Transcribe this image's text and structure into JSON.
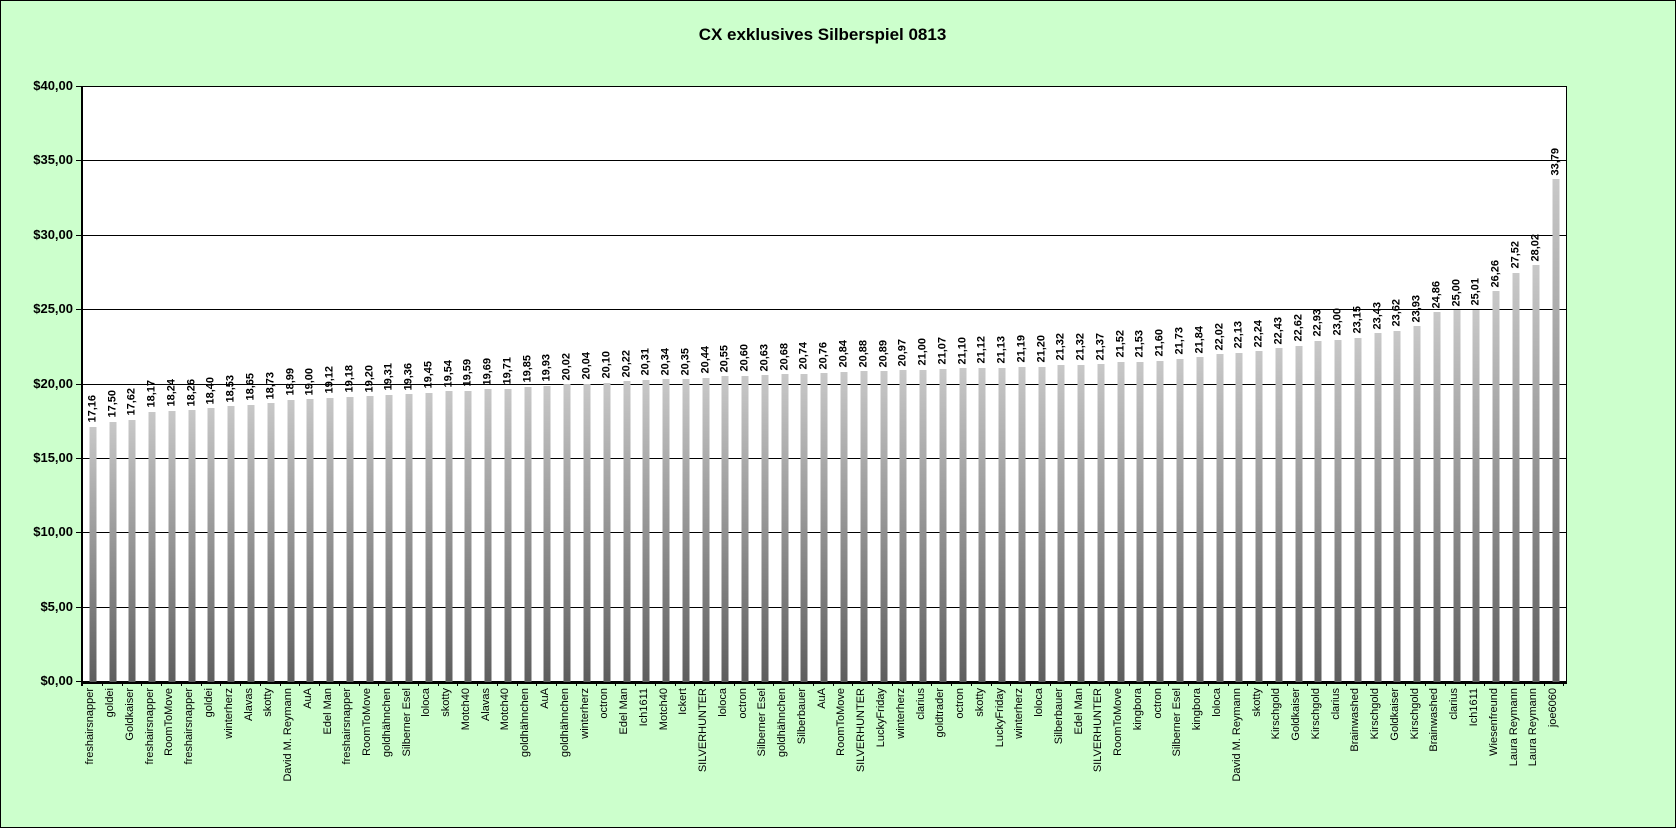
{
  "title": "CX exklusives Silberspiel 0813",
  "chart_data": {
    "type": "bar",
    "title": "CX exklusives Silberspiel 0813",
    "xlabel": "",
    "ylabel": "",
    "ylim": [
      0,
      40
    ],
    "ytick_step": 5,
    "ytick_labels": [
      "$0,00",
      "$5,00",
      "$10,00",
      "$15,00",
      "$20,00",
      "$25,00",
      "$30,00",
      "$35,00",
      "$40,00"
    ],
    "grid": true,
    "legend": false,
    "bar_orientation": "vertical",
    "categories": [
      "freshairsnapper",
      "goldei",
      "Goldkaiser",
      "freshairsnapper",
      "RoomToMove",
      "freshairsnapper",
      "goldei",
      "winterherz",
      "Alavas",
      "skotty",
      "David M. Reymann",
      "AuA",
      "Edel Man",
      "freshairsnapper",
      "RoomToMove",
      "goldhähnchen",
      "Silberner Esel",
      "loloca",
      "skotty",
      "Motch40",
      "Alavas",
      "Motch40",
      "goldhähnchen",
      "AuA",
      "goldhähnchen",
      "winterherz",
      "octron",
      "Edel Man",
      "Ich1611",
      "Motch40",
      "Ickert",
      "SILVERHUNTER",
      "loloca",
      "octron",
      "Silberner Esel",
      "goldhähnchen",
      "Silberbauer",
      "AuA",
      "RoomToMove",
      "SILVERHUNTER",
      "LuckyFriday",
      "winterherz",
      "clarius",
      "goldtrader",
      "octron",
      "skotty",
      "LuckyFriday",
      "winterherz",
      "loloca",
      "Silberbauer",
      "Edel Man",
      "SILVERHUNTER",
      "RoomToMove",
      "kingbora",
      "octron",
      "Silberner Esel",
      "kingbora",
      "loloca",
      "David M. Reymann",
      "skotty",
      "Kirschgold",
      "Goldkaiser",
      "Kirschgold",
      "clarius",
      "Brainwashed",
      "Kirschgold",
      "Goldkaiser",
      "Kirschgold",
      "Brainwashed",
      "clarius",
      "Ich1611",
      "Wiesenfreund",
      "Laura Reymann",
      "Laura Reymann",
      "joe6060"
    ],
    "values": [
      17.16,
      17.5,
      17.62,
      18.17,
      18.24,
      18.26,
      18.4,
      18.53,
      18.65,
      18.73,
      18.99,
      19.0,
      19.12,
      19.18,
      19.2,
      19.31,
      19.36,
      19.45,
      19.54,
      19.59,
      19.69,
      19.71,
      19.85,
      19.93,
      20.02,
      20.04,
      20.1,
      20.22,
      20.31,
      20.34,
      20.35,
      20.44,
      20.55,
      20.6,
      20.63,
      20.68,
      20.74,
      20.76,
      20.84,
      20.88,
      20.89,
      20.97,
      21.0,
      21.07,
      21.1,
      21.12,
      21.13,
      21.19,
      21.2,
      21.32,
      21.32,
      21.37,
      21.52,
      21.53,
      21.6,
      21.73,
      21.84,
      22.02,
      22.13,
      22.24,
      22.43,
      22.62,
      22.93,
      23.0,
      23.15,
      23.43,
      23.62,
      23.93,
      24.86,
      25.0,
      25.01,
      26.26,
      27.52,
      28.02,
      33.79
    ],
    "value_labels": [
      "17,16",
      "17,50",
      "17,62",
      "18,17",
      "18,24",
      "18,26",
      "18,40",
      "18,53",
      "18,65",
      "18,73",
      "18,99",
      "19,00",
      "19,12",
      "19,18",
      "19,20",
      "19,31",
      "19,36",
      "19,45",
      "19,54",
      "19,59",
      "19,69",
      "19,71",
      "19,85",
      "19,93",
      "20,02",
      "20,04",
      "20,10",
      "20,22",
      "20,31",
      "20,34",
      "20,35",
      "20,44",
      "20,55",
      "20,60",
      "20,63",
      "20,68",
      "20,74",
      "20,76",
      "20,84",
      "20,88",
      "20,89",
      "20,97",
      "21,00",
      "21,07",
      "21,10",
      "21,12",
      "21,13",
      "21,19",
      "21,20",
      "21,32",
      "21,32",
      "21,37",
      "21,52",
      "21,53",
      "21,60",
      "21,73",
      "21,84",
      "22,02",
      "22,13",
      "22,24",
      "22,43",
      "22,62",
      "22,93",
      "23,00",
      "23,15",
      "23,43",
      "23,62",
      "23,93",
      "24,86",
      "25,00",
      "25,01",
      "26,26",
      "27,52",
      "28,02",
      "33,79"
    ],
    "colors": {
      "page_background": "#ccffcc",
      "plot_background": "#ffffff",
      "bar_gradient_top": "#c8c8c8",
      "bar_gradient_bottom": "#5e5e5e",
      "axis": "#000000",
      "text": "#000000"
    }
  }
}
